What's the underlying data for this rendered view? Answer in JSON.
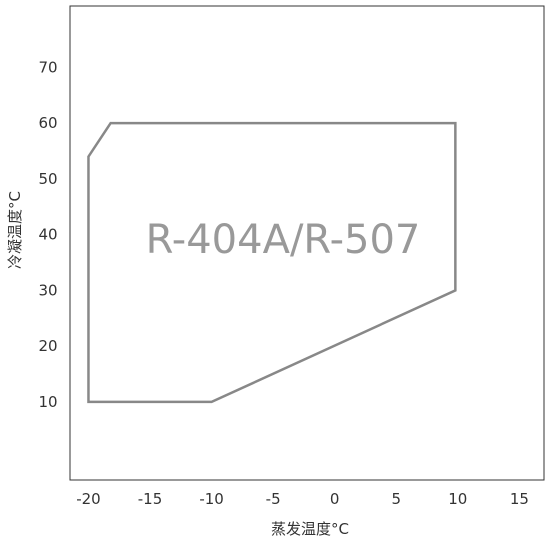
{
  "chart_data": {
    "type": "area",
    "xlabel": "蒸发温度°C",
    "ylabel": "冷凝温度°C",
    "x_ticks": [
      -20,
      -15,
      -10,
      -5,
      0,
      5,
      10,
      15
    ],
    "y_ticks": [
      10,
      20,
      30,
      40,
      50,
      60,
      70
    ],
    "xlim": [
      -21.5,
      17
    ],
    "ylim": [
      -4,
      81
    ],
    "series": [
      {
        "name": "R-404A/R-507",
        "points": [
          {
            "x": -20,
            "y": 10
          },
          {
            "x": -20,
            "y": 54
          },
          {
            "x": -18.2,
            "y": 60
          },
          {
            "x": 9.8,
            "y": 60
          },
          {
            "x": 9.8,
            "y": 30
          },
          {
            "x": -10,
            "y": 10
          }
        ],
        "color": "#888888"
      }
    ],
    "grid": false
  }
}
